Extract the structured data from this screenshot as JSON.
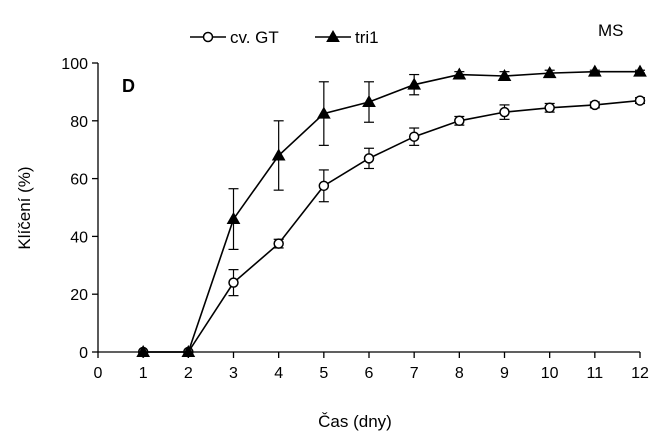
{
  "chart_data": {
    "type": "line",
    "panel_label": "D",
    "corner_label": "MS",
    "xlabel": "Čas (dny)",
    "ylabel": "Klíčení (%)",
    "xlim": [
      0,
      12
    ],
    "ylim": [
      0,
      100
    ],
    "xticks": [
      0,
      1,
      2,
      3,
      4,
      5,
      6,
      7,
      8,
      9,
      10,
      11,
      12
    ],
    "yticks": [
      0,
      20,
      40,
      60,
      80,
      100
    ],
    "grid": false,
    "legend_position": "top",
    "x": [
      1,
      2,
      3,
      4,
      5,
      6,
      7,
      8,
      9,
      10,
      11,
      12
    ],
    "series": [
      {
        "name": "cv. GT",
        "marker": "open-circle",
        "color": "#000000",
        "values": [
          0,
          0,
          24,
          37.5,
          57.5,
          67,
          74.5,
          80,
          83,
          84.5,
          85.5,
          87
        ],
        "errors": [
          0,
          0,
          4.5,
          1.5,
          5.5,
          3.5,
          3,
          1.5,
          2.5,
          1.5,
          1,
          1
        ]
      },
      {
        "name": "tri1",
        "marker": "filled-triangle",
        "color": "#000000",
        "values": [
          0,
          0,
          46,
          68,
          82.5,
          86.5,
          92.5,
          96,
          95.5,
          96.5,
          97,
          97
        ],
        "errors": [
          0,
          0,
          10.5,
          12,
          11,
          7,
          3.5,
          1,
          1.5,
          1,
          0.5,
          0.5
        ]
      }
    ]
  }
}
